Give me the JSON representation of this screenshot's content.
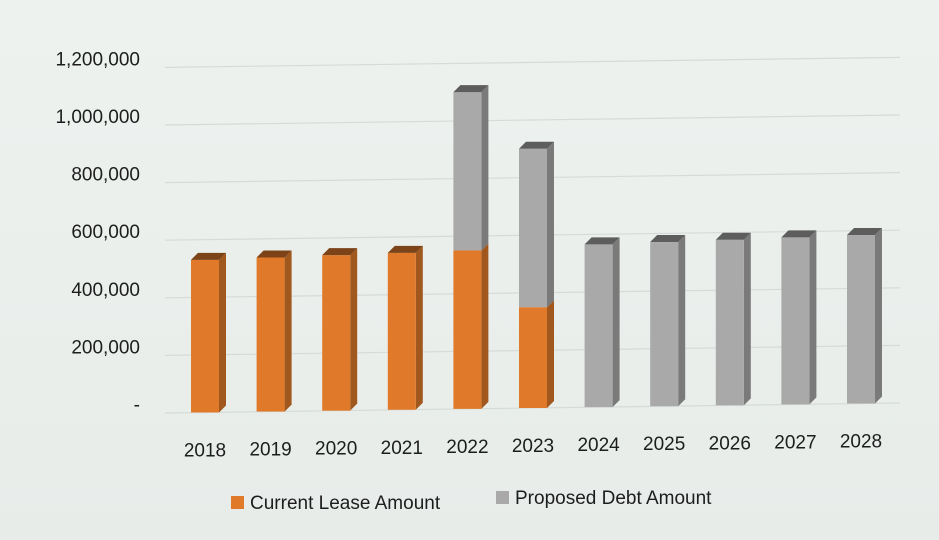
{
  "chart_data": {
    "type": "bar",
    "stacked": true,
    "categories": [
      "2018",
      "2019",
      "2020",
      "2021",
      "2022",
      "2023",
      "2024",
      "2025",
      "2026",
      "2027",
      "2028"
    ],
    "series": [
      {
        "name": "Current Lease Amount",
        "color": "#e07a2a",
        "values": [
          530000,
          535000,
          540000,
          545000,
          550000,
          350000,
          0,
          0,
          0,
          0,
          0
        ]
      },
      {
        "name": "Proposed Debt Amount",
        "color": "#a9a9a9",
        "values": [
          0,
          0,
          0,
          0,
          550000,
          550000,
          565000,
          570000,
          575000,
          580000,
          585000
        ]
      }
    ],
    "y_tick_labels": [
      "-",
      "200,000",
      "400,000",
      "600,000",
      "800,000",
      "1,000,000",
      "1,200,000"
    ],
    "y_tick_values": [
      0,
      200000,
      400000,
      600000,
      800000,
      1000000,
      1200000
    ],
    "ylim": [
      0,
      1200000
    ],
    "grid": true,
    "legend_position": "bottom"
  }
}
